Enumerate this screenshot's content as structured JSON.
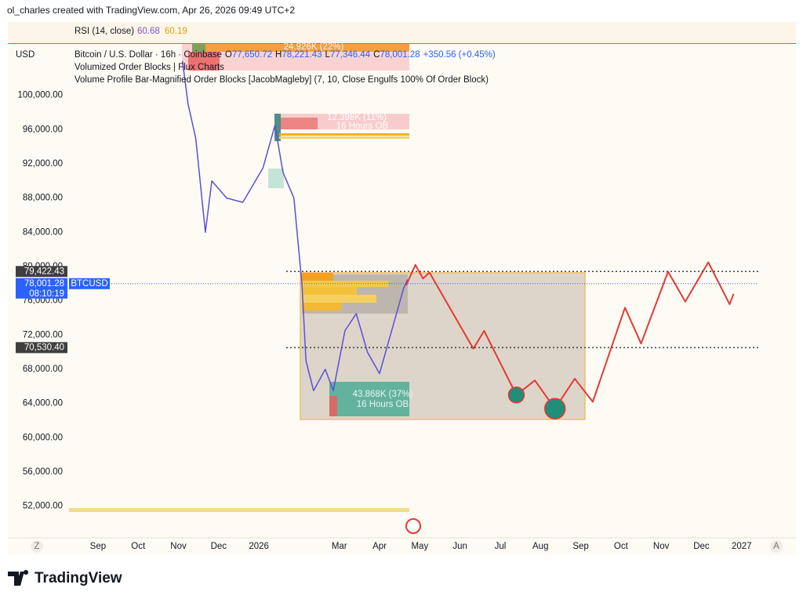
{
  "header": {
    "text": "ol_charles created with TradingView.com, Apr 26, 2026 09:49 UTC+2"
  },
  "rsi": {
    "label": "RSI (14, close)",
    "value1": "60.68",
    "value2": "60.19"
  },
  "legend": {
    "currency": "USD",
    "symbol": "Bitcoin / U.S. Dollar · 16h · Coinbase",
    "o_label": "O",
    "o_value": "77,650.72",
    "h_label": "H",
    "h_value": "78,221.43",
    "l_label": "L",
    "l_value": "77,346.44",
    "c_label": "C",
    "c_value": "78,001.28",
    "change": "+350.56 (+0.45%)",
    "indicator1": "Volumized Order Blocks | Flux Charts",
    "indicator2": "Volume Profile Bar-Magnified Order Blocks [JacobMagleby] (7, 10, Close Engulfs 100% Of Order Block)"
  },
  "annotations": {
    "block1_volume": "24.926K (22%)",
    "block2_volume": "12.398K (11%)",
    "block2_label": "16 Hours OB",
    "block3_volume": "43.868K (37%)",
    "block3_label": "16 Hours OB"
  },
  "chart_data": {
    "type": "line",
    "xlim": [
      -1.24,
      17.57
    ],
    "xticks": [
      {
        "value": 1,
        "label": "Sep"
      },
      {
        "value": 2,
        "label": "Oct"
      },
      {
        "value": 3,
        "label": "Nov"
      },
      {
        "value": 4,
        "label": "Dec"
      },
      {
        "value": 5,
        "label": "2026"
      },
      {
        "value": 7,
        "label": "Mar"
      },
      {
        "value": 8,
        "label": "Apr"
      },
      {
        "value": 9,
        "label": "May"
      },
      {
        "value": 10,
        "label": "Jun"
      },
      {
        "value": 11,
        "label": "Jul"
      },
      {
        "value": 12,
        "label": "Aug"
      },
      {
        "value": 13,
        "label": "Sep"
      },
      {
        "value": 14,
        "label": "Oct"
      },
      {
        "value": 15,
        "label": "Nov"
      },
      {
        "value": 16,
        "label": "Dec"
      },
      {
        "value": 17,
        "label": "2027"
      }
    ],
    "ylim": [
      48400,
      106100
    ],
    "yticks": [
      {
        "value": 52000,
        "label": "52,000.00"
      },
      {
        "value": 56000,
        "label": "56,000.00"
      },
      {
        "value": 60000,
        "label": "60,000.00"
      },
      {
        "value": 64000,
        "label": "64,000.00"
      },
      {
        "value": 68000,
        "label": "68,000.00"
      },
      {
        "value": 72000,
        "label": "72,000.00"
      },
      {
        "value": 76000,
        "label": "76,000.00"
      },
      {
        "value": 80000,
        "label": "80,000.00"
      },
      {
        "value": 84000,
        "label": "84,000.00"
      },
      {
        "value": 88000,
        "label": "88,000.00"
      },
      {
        "value": 92000,
        "label": "92,000.00"
      },
      {
        "value": 96000,
        "label": "96,000.00"
      },
      {
        "value": 100000,
        "label": "100,000.00"
      }
    ],
    "grid": false,
    "series": [
      {
        "name": "BTCUSD",
        "color": "#5b50d6",
        "x": [
          3.1,
          3.24,
          3.43,
          3.67,
          3.83,
          4.2,
          4.6,
          5.1,
          5.4,
          5.6,
          5.87,
          6.07,
          6.17,
          6.36,
          6.65,
          6.85,
          7.14,
          7.42,
          7.7,
          8.0,
          8.3,
          8.6,
          8.7
        ],
        "values": [
          104000,
          99000,
          95000,
          84000,
          90000,
          88000,
          87500,
          91500,
          96500,
          91000,
          88000,
          78000,
          69000,
          65500,
          68000,
          65500,
          72500,
          74500,
          70000,
          67500,
          72500,
          77500,
          78500
        ]
      },
      {
        "name": "Projection",
        "color": "#e53935",
        "x": [
          8.66,
          8.89,
          9.08,
          9.24,
          10.33,
          10.6,
          11.4,
          11.86,
          12.36,
          12.85,
          13.3,
          14.1,
          14.5,
          15.17,
          15.6,
          16.17,
          16.7,
          16.8
        ],
        "values": [
          77800,
          80200,
          78600,
          79300,
          70400,
          72500,
          65000,
          66700,
          63400,
          66900,
          64200,
          75200,
          71000,
          79400,
          75900,
          80500,
          75600,
          76800
        ]
      }
    ],
    "markers": {
      "color": "#1f8f7a",
      "x": [
        11.4,
        12.36
      ],
      "values": [
        65000,
        63400
      ]
    },
    "price_tags": [
      {
        "value": 79422.43,
        "label": "79,422.43",
        "color": "#3f3f3f"
      },
      {
        "value": 78001.28,
        "label": "78,001.28",
        "color": "#2962ff",
        "symbol": "BTCUSD",
        "countdown": "08:10:19"
      },
      {
        "value": 70530.4,
        "label": "70,530.40",
        "color": "#3f3f3f"
      }
    ]
  },
  "footer": {
    "brand": "TradingView",
    "left_button": "Z",
    "right_button": "A"
  }
}
